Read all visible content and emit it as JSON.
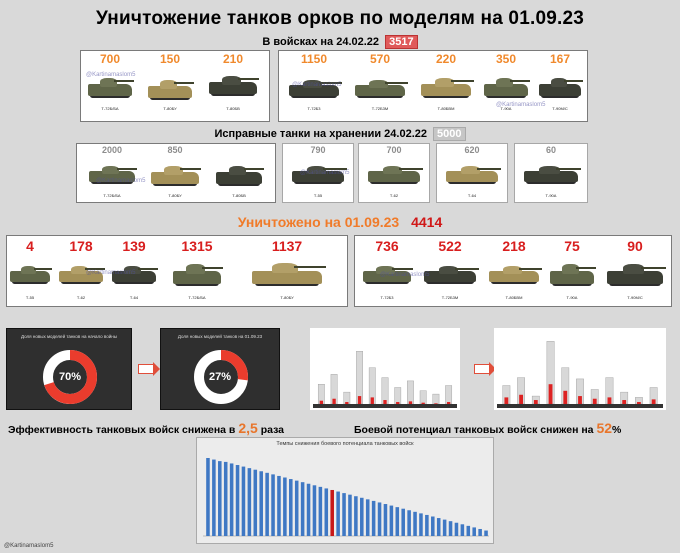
{
  "title": "Уничтожение танков орков по моделям на 01.09.23",
  "section1": {
    "label": "В войсках на 24.02.22",
    "total": "3517"
  },
  "section2": {
    "label": "Исправные танки на хранении 24.02.22",
    "total": "5000"
  },
  "section3": {
    "label": "Уничтожено на 01.09.23",
    "total": "4414"
  },
  "watermark": "@Kartinamaslom5",
  "army_left": [
    {
      "count": "700",
      "model": "Т-72Б/БА"
    },
    {
      "count": "150",
      "model": "Т-80БУ"
    },
    {
      "count": "210",
      "model": "Т-80БВ"
    }
  ],
  "army_right": [
    {
      "count": "1150",
      "model": "Т-72Б3"
    },
    {
      "count": "570",
      "model": "Т-72Б3М"
    },
    {
      "count": "220",
      "model": "Т-80БВМ"
    },
    {
      "count": "350",
      "model": "Т-90А"
    },
    {
      "count": "167",
      "model": "Т-90М/С"
    }
  ],
  "storage_left": [
    {
      "count": "2000",
      "model": "Т-72Б/БА"
    },
    {
      "count": "850",
      "model": "Т-80БУ"
    },
    {
      "count": "",
      "model": "Т-80БВ"
    }
  ],
  "storage_right": [
    {
      "count": "790",
      "model": "Т-55"
    },
    {
      "count": "700",
      "model": "Т-62"
    },
    {
      "count": "620",
      "model": "Т-64"
    },
    {
      "count": "60",
      "model": "Т-90А"
    }
  ],
  "destroyed_left": [
    {
      "count": "4",
      "model": "Т-55"
    },
    {
      "count": "178",
      "model": "Т-62"
    },
    {
      "count": "139",
      "model": "Т-64"
    },
    {
      "count": "1315",
      "model": "Т-72Б/БА"
    },
    {
      "count": "1137",
      "model": "Т-80БУ"
    }
  ],
  "destroyed_right": [
    {
      "count": "736",
      "model": "Т-72Б3"
    },
    {
      "count": "522",
      "model": "Т-72Б3М"
    },
    {
      "count": "218",
      "model": "Т-80БВМ"
    },
    {
      "count": "75",
      "model": "Т-90А"
    },
    {
      "count": "90",
      "model": "Т-90М/С"
    }
  ],
  "donut1": {
    "caption": "Доля новых моделей танков на начало войны",
    "value": "70%"
  },
  "donut2": {
    "caption": "Доля новых моделей танков на 01.09.23",
    "value": "27%"
  },
  "statement_left": {
    "text": "Эффективность танковых войск снижена в",
    "accent": "2,5",
    "suffix": "раза"
  },
  "statement_right": {
    "text": "Боевой потенциал танковых войск снижен на",
    "accent": "52",
    "suffix": "%"
  },
  "footer": "@Kartinamaslom5",
  "colors": {
    "accent_orange": "#f07b2a",
    "accent_red": "#d01818",
    "bar_blue": "#3f78c4",
    "bar_red": "#c81818"
  },
  "chart_data": [
    {
      "type": "pie",
      "title": "Доля новых моделей танков на начало войны",
      "values": [
        70,
        30
      ]
    },
    {
      "type": "pie",
      "title": "Доля новых моделей танков на 01.09.23",
      "values": [
        27,
        73
      ]
    },
    {
      "type": "bar",
      "title": "Темпы снижения боевого потенциала танковых войск",
      "highlight_index": 21,
      "values": [
        100,
        98,
        96,
        95,
        93,
        91,
        89,
        87,
        85,
        83,
        81,
        79,
        77,
        75,
        73,
        71,
        69,
        67,
        65,
        63,
        61,
        59,
        57,
        55,
        53,
        51,
        49,
        47,
        45,
        43,
        41,
        39,
        37,
        35,
        33,
        31,
        29,
        27,
        25,
        23,
        21,
        19,
        17,
        15,
        13,
        11,
        9,
        7
      ]
    },
    {
      "type": "bar",
      "values": [
        30,
        45,
        18,
        80,
        55,
        40,
        25,
        35,
        20,
        15,
        28
      ],
      "values_red": [
        5,
        8,
        3,
        12,
        10,
        6,
        3,
        4,
        2,
        1,
        3
      ]
    },
    {
      "type": "bar",
      "values": [
        28,
        40,
        12,
        95,
        55,
        38,
        22,
        40,
        18,
        10,
        25
      ],
      "values_red": [
        10,
        14,
        6,
        30,
        20,
        12,
        8,
        10,
        6,
        3,
        7
      ]
    }
  ]
}
